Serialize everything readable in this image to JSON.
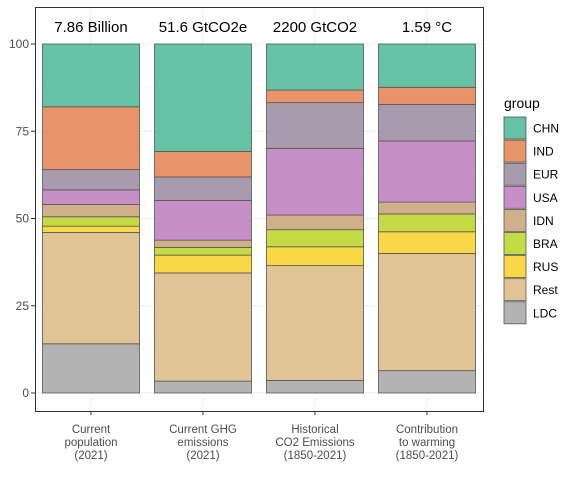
{
  "chart_data": {
    "type": "bar",
    "stacked": true,
    "categories": [
      [
        "Current",
        "population",
        "(2021)"
      ],
      [
        "Current GHG",
        "emissions",
        "(2021)"
      ],
      [
        "Historical",
        "CO2 Emissions",
        "(1850-2021)"
      ],
      [
        "Contribution",
        "to warming",
        "(1850-2021)"
      ]
    ],
    "top_labels": [
      "7.86 Billion",
      "51.6 GtCO2e",
      "2200 GtCO2",
      "1.59 °C"
    ],
    "ylim": [
      0,
      100
    ],
    "yticks": [
      0,
      25,
      50,
      75,
      100
    ],
    "grid": true,
    "legend": {
      "title": "group",
      "placement": "right",
      "entries": [
        "CHN",
        "IND",
        "EUR",
        "USA",
        "IDN",
        "BRA",
        "RUS",
        "Rest",
        "LDC"
      ]
    },
    "stack_order_bottom_to_top": [
      "LDC",
      "Rest",
      "RUS",
      "BRA",
      "IDN",
      "USA",
      "EUR",
      "IND",
      "CHN"
    ],
    "colors": {
      "CHN": "#66C2A5",
      "IND": "#E9936A",
      "EUR": "#A99BAE",
      "USA": "#C690C6",
      "IDN": "#CFB08A",
      "BRA": "#C4DB45",
      "RUS": "#F9D847",
      "Rest": "#E0C495",
      "LDC": "#B3B3B3"
    },
    "series": [
      {
        "name": "LDC",
        "values": [
          14.1,
          3.4,
          3.6,
          6.4
        ]
      },
      {
        "name": "Rest",
        "values": [
          31.9,
          31.0,
          32.9,
          33.6
        ]
      },
      {
        "name": "RUS",
        "values": [
          1.8,
          5.1,
          5.4,
          6.2
        ]
      },
      {
        "name": "BRA",
        "values": [
          2.7,
          2.2,
          4.9,
          5.1
        ]
      },
      {
        "name": "IDN",
        "values": [
          3.5,
          2.1,
          4.2,
          3.4
        ]
      },
      {
        "name": "USA",
        "values": [
          4.2,
          11.4,
          19.1,
          17.5
        ]
      },
      {
        "name": "EUR",
        "values": [
          5.8,
          6.7,
          13.1,
          10.5
        ]
      },
      {
        "name": "IND",
        "values": [
          18.0,
          7.3,
          3.6,
          4.9
        ]
      },
      {
        "name": "CHN",
        "values": [
          18.0,
          30.8,
          13.2,
          12.4
        ]
      }
    ]
  }
}
